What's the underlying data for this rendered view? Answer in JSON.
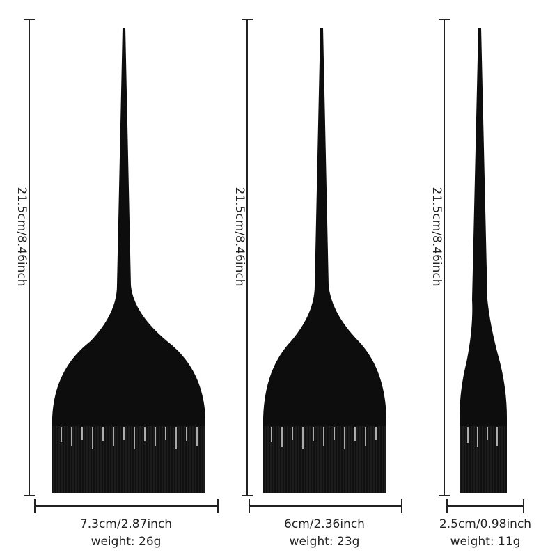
{
  "brushes": [
    {
      "length": "21.5cm/8.46inch",
      "width": "7.3cm/2.87inch",
      "weight": "weight:  26g"
    },
    {
      "length": "21.5cm/8.46inch",
      "width": "6cm/2.36inch",
      "weight": "weight:  23g"
    },
    {
      "length": "21.5cm/8.46inch",
      "width": "2.5cm/0.98inch",
      "weight": "weight:  11g"
    }
  ],
  "colors": {
    "brush": "#0d0d0d",
    "lines": "#222222",
    "background": "#ffffff"
  }
}
